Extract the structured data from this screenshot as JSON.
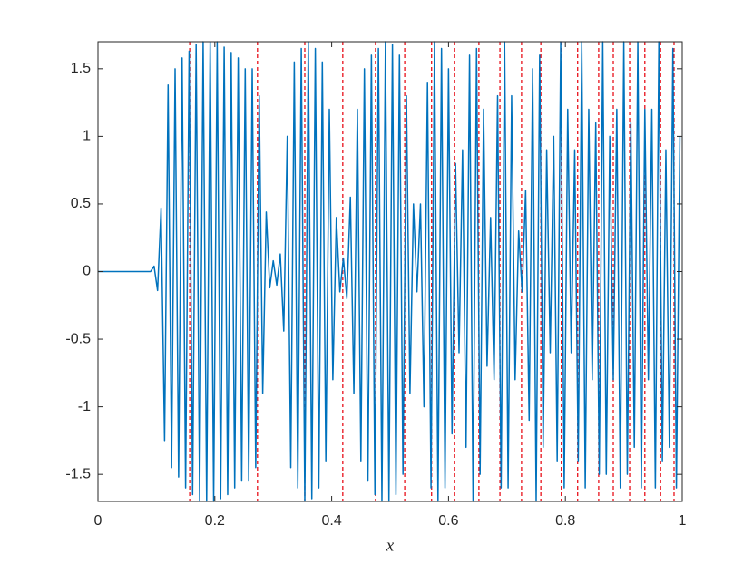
{
  "chart_data": {
    "type": "line",
    "xlabel": "x",
    "x": [
      0,
      0.09,
      0.096,
      0.102,
      0.108,
      0.114,
      0.12,
      0.126,
      0.132,
      0.138,
      0.144,
      0.15,
      0.156,
      0.162,
      0.168,
      0.174,
      0.18,
      0.186,
      0.192,
      0.198,
      0.204,
      0.21,
      0.216,
      0.222,
      0.228,
      0.234,
      0.24,
      0.246,
      0.252,
      0.258,
      0.264,
      0.27,
      0.276,
      0.282,
      0.288,
      0.294,
      0.3,
      0.306,
      0.312,
      0.318,
      0.324,
      0.33,
      0.336,
      0.342,
      0.348,
      0.354,
      0.36,
      0.366,
      0.372,
      0.378,
      0.384,
      0.39,
      0.396,
      0.402,
      0.408,
      0.414,
      0.42,
      0.426,
      0.432,
      0.438,
      0.444,
      0.45,
      0.456,
      0.462,
      0.468,
      0.474,
      0.48,
      0.486,
      0.492,
      0.498,
      0.504,
      0.51,
      0.516,
      0.522,
      0.528,
      0.534,
      0.54,
      0.546,
      0.552,
      0.558,
      0.564,
      0.57,
      0.576,
      0.582,
      0.588,
      0.594,
      0.6,
      0.606,
      0.612,
      0.618,
      0.624,
      0.63,
      0.636,
      0.642,
      0.648,
      0.654,
      0.66,
      0.666,
      0.672,
      0.678,
      0.684,
      0.69,
      0.696,
      0.702,
      0.708,
      0.714,
      0.72,
      0.726,
      0.732,
      0.738,
      0.744,
      0.75,
      0.756,
      0.762,
      0.768,
      0.774,
      0.78,
      0.786,
      0.792,
      0.798,
      0.804,
      0.81,
      0.816,
      0.822,
      0.828,
      0.834,
      0.84,
      0.846,
      0.852,
      0.858,
      0.864,
      0.87,
      0.876,
      0.882,
      0.888,
      0.894,
      0.9,
      0.906,
      0.912,
      0.918,
      0.924,
      0.93,
      0.936,
      0.942,
      0.948,
      0.954,
      0.96,
      0.966,
      0.972,
      0.978,
      0.984,
      0.99,
      0.996
    ],
    "series": [
      {
        "color": "#0072bd",
        "values": [
          0,
          0,
          0.04,
          -0.14,
          0.47,
          -1.25,
          1.38,
          -1.45,
          1.5,
          -1.52,
          1.58,
          -1.6,
          1.63,
          -1.65,
          1.68,
          -1.7,
          1.7,
          -1.7,
          1.7,
          -1.7,
          1.7,
          -1.68,
          1.66,
          -1.65,
          1.62,
          -1.6,
          1.58,
          -1.55,
          1.5,
          -1.55,
          1.5,
          -1.45,
          1.3,
          -0.9,
          0.44,
          -0.12,
          0.08,
          -0.1,
          0.13,
          -0.44,
          1.0,
          -1.45,
          1.55,
          -1.6,
          1.65,
          -1.7,
          1.7,
          -1.68,
          1.65,
          -1.6,
          1.55,
          -1.4,
          1.2,
          -0.8,
          0.4,
          -0.15,
          0.1,
          -0.2,
          0.55,
          -0.9,
          1.2,
          -1.4,
          1.5,
          -1.55,
          1.6,
          -1.65,
          1.65,
          -1.7,
          1.7,
          -1.7,
          1.68,
          -1.65,
          1.6,
          -1.5,
          1.3,
          -0.9,
          0.5,
          -0.15,
          0.5,
          -1.0,
          1.4,
          -1.6,
          1.7,
          -1.7,
          1.65,
          -1.6,
          1.5,
          -1.2,
          0.8,
          -0.6,
          0.9,
          -1.3,
          1.6,
          -1.7,
          1.65,
          -1.5,
          1.2,
          -0.7,
          0.4,
          -0.8,
          1.3,
          -1.6,
          1.7,
          -1.6,
          1.3,
          -0.8,
          0.3,
          -0.15,
          0.6,
          -1.1,
          1.5,
          -1.7,
          1.6,
          -1.3,
          0.9,
          -0.6,
          1.0,
          -1.4,
          1.7,
          -1.6,
          1.2,
          -0.6,
          0.9,
          -1.4,
          1.7,
          -1.6,
          1.2,
          -0.8,
          1.1,
          -1.5,
          1.7,
          -1.5,
          1.0,
          -0.8,
          1.2,
          -1.6,
          1.7,
          -1.5,
          1.1,
          -1.3,
          1.7,
          -1.6,
          1.2,
          -0.8,
          1.2,
          -1.6,
          1.7,
          -1.4,
          0.9,
          -1.3,
          1.65,
          -1.6,
          1.0
        ]
      }
    ],
    "vlines": {
      "x": [
        0.157,
        0.273,
        0.354,
        0.419,
        0.475,
        0.525,
        0.571,
        0.61,
        0.652,
        0.688,
        0.725,
        0.758,
        0.793,
        0.821,
        0.857,
        0.882,
        0.91,
        0.936,
        0.963,
        0.986
      ],
      "color": "#e8101a",
      "dashed": true
    },
    "xlim": [
      0,
      1
    ],
    "xticks": [
      0,
      0.2,
      0.4,
      0.6,
      0.8,
      1
    ],
    "ylim": [
      -1.7,
      1.7
    ],
    "yticks": [
      -1.5,
      -1,
      -0.5,
      0,
      0.5,
      1,
      1.5
    ]
  }
}
